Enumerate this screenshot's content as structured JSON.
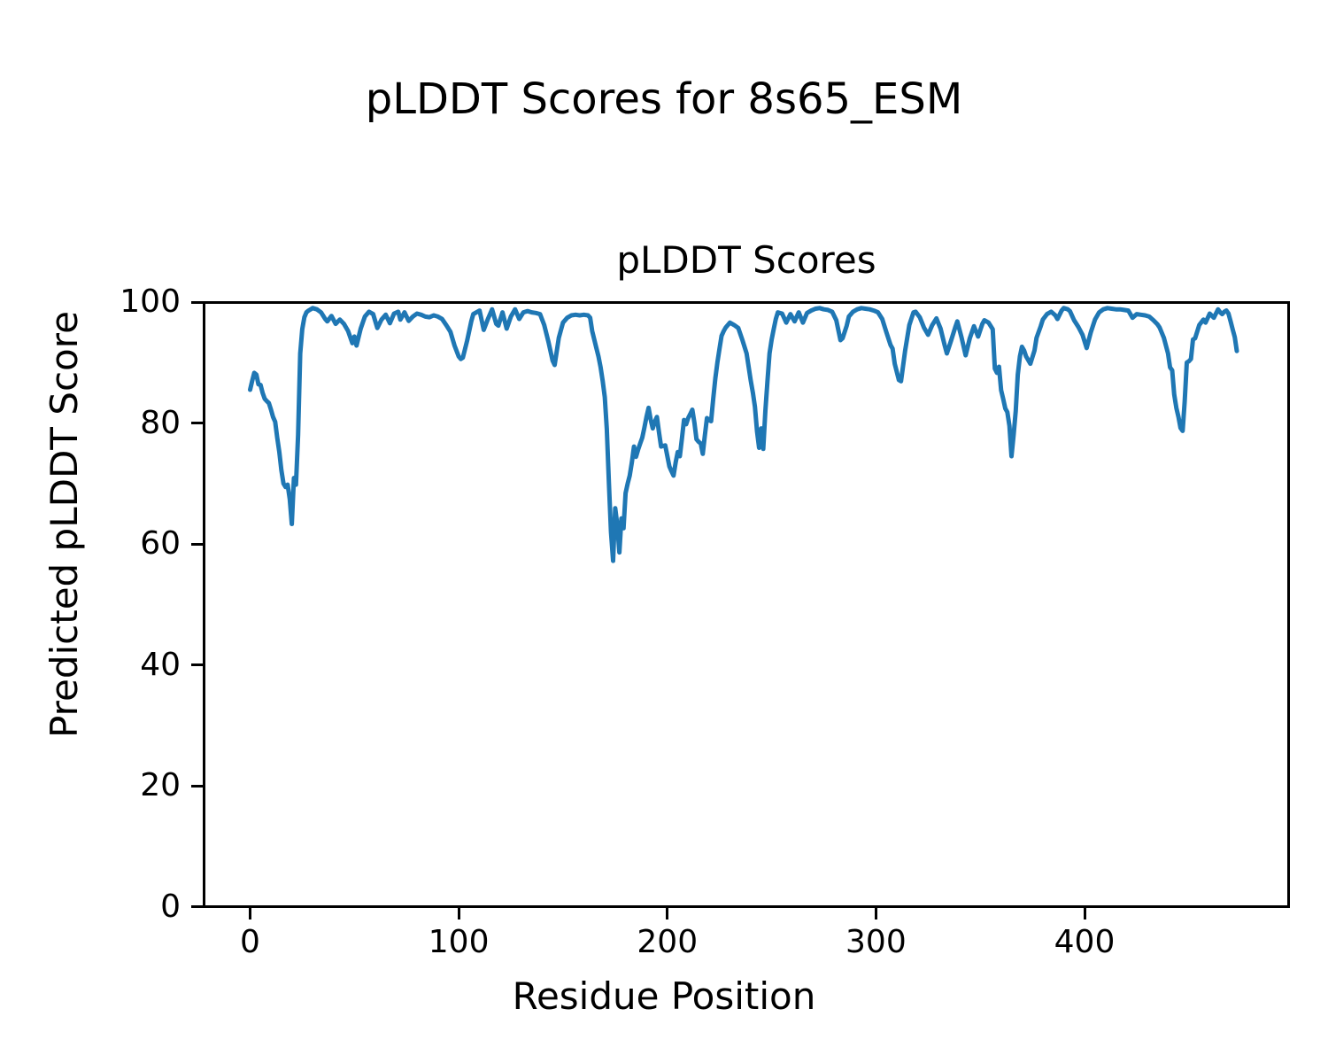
{
  "figure": {
    "suptitle": "pLDDT Scores for 8s65_ESM",
    "background": "#ffffff"
  },
  "chart_data": {
    "type": "line",
    "title": "pLDDT Scores",
    "suptitle": "pLDDT Scores for 8s65_ESM",
    "xlabel": "Residue Position",
    "ylabel": "Predicted pLDDT Score",
    "xlim": [
      -23.6,
      497.5
    ],
    "ylim": [
      0,
      100
    ],
    "xticks": [
      0,
      100,
      200,
      300,
      400
    ],
    "yticks": [
      0,
      20,
      40,
      60,
      80,
      100
    ],
    "grid": false,
    "legend_position": "none",
    "line_color": "#1f77b4",
    "line_width": 5,
    "axis_color": "#000000",
    "series": [
      {
        "name": "pLDDT",
        "points": [
          [
            0,
            85.5
          ],
          [
            1,
            87
          ],
          [
            2,
            88.3
          ],
          [
            3,
            88
          ],
          [
            4,
            86.4
          ],
          [
            5,
            86.3
          ],
          [
            6,
            85
          ],
          [
            7,
            84
          ],
          [
            8,
            83.6
          ],
          [
            9,
            83.3
          ],
          [
            10,
            82.2
          ],
          [
            11,
            81
          ],
          [
            12,
            80.2
          ],
          [
            13,
            77.6
          ],
          [
            14,
            75.2
          ],
          [
            15,
            72.2
          ],
          [
            16,
            70
          ],
          [
            17,
            69.4
          ],
          [
            18,
            69.8
          ],
          [
            19,
            67.4
          ],
          [
            20,
            63.3
          ],
          [
            21,
            70.9
          ],
          [
            22,
            69.8
          ],
          [
            23,
            78
          ],
          [
            24,
            91.5
          ],
          [
            25,
            95.5
          ],
          [
            26,
            97.5
          ],
          [
            27,
            98.3
          ],
          [
            28,
            98.6
          ],
          [
            30,
            99
          ],
          [
            32,
            98.8
          ],
          [
            34,
            98.3
          ],
          [
            36,
            97.2
          ],
          [
            37,
            96.8
          ],
          [
            39,
            97.7
          ],
          [
            41,
            96.4
          ],
          [
            43,
            97.1
          ],
          [
            45,
            96.4
          ],
          [
            47,
            95.2
          ],
          [
            49,
            93.2
          ],
          [
            50,
            94.3
          ],
          [
            51,
            92.8
          ],
          [
            53,
            95.6
          ],
          [
            55,
            97.6
          ],
          [
            57,
            98.4
          ],
          [
            59,
            98
          ],
          [
            61,
            95.7
          ],
          [
            63,
            97.1
          ],
          [
            65,
            97.9
          ],
          [
            67,
            96.5
          ],
          [
            69,
            98.1
          ],
          [
            71,
            98.4
          ],
          [
            72,
            97.1
          ],
          [
            74,
            98.3
          ],
          [
            76,
            96.9
          ],
          [
            78,
            97.6
          ],
          [
            80,
            98.1
          ],
          [
            82,
            97.9
          ],
          [
            84,
            97.6
          ],
          [
            86,
            97.5
          ],
          [
            88,
            97.8
          ],
          [
            90,
            97.6
          ],
          [
            92,
            97.2
          ],
          [
            94,
            96.2
          ],
          [
            96,
            95.1
          ],
          [
            98,
            92.8
          ],
          [
            100,
            91
          ],
          [
            101,
            90.6
          ],
          [
            102,
            90.8
          ],
          [
            104,
            93.6
          ],
          [
            106,
            96.8
          ],
          [
            107,
            98
          ],
          [
            109,
            98.4
          ],
          [
            110,
            98.6
          ],
          [
            112,
            95.4
          ],
          [
            114,
            97.2
          ],
          [
            116,
            98.8
          ],
          [
            118,
            96.4
          ],
          [
            119,
            96.1
          ],
          [
            121,
            98.3
          ],
          [
            123,
            95.6
          ],
          [
            125,
            97.6
          ],
          [
            127,
            98.8
          ],
          [
            129,
            97.2
          ],
          [
            131,
            98.3
          ],
          [
            133,
            98.5
          ],
          [
            135,
            98.3
          ],
          [
            137,
            98.2
          ],
          [
            139,
            98
          ],
          [
            141,
            96.2
          ],
          [
            143,
            93.4
          ],
          [
            145,
            90.3
          ],
          [
            146,
            89.6
          ],
          [
            148,
            94.1
          ],
          [
            150,
            96.6
          ],
          [
            152,
            97.4
          ],
          [
            154,
            97.8
          ],
          [
            156,
            97.9
          ],
          [
            158,
            97.8
          ],
          [
            160,
            97.9
          ],
          [
            162,
            97.8
          ],
          [
            163,
            97.4
          ],
          [
            164,
            95.2
          ],
          [
            166,
            92.4
          ],
          [
            167,
            91
          ],
          [
            168,
            89.2
          ],
          [
            169,
            87
          ],
          [
            170,
            84.3
          ],
          [
            171,
            79
          ],
          [
            172,
            70
          ],
          [
            173,
            62
          ],
          [
            174,
            57.2
          ],
          [
            175,
            65.9
          ],
          [
            176,
            63.2
          ],
          [
            177,
            58.6
          ],
          [
            178,
            64.2
          ],
          [
            179,
            62.6
          ],
          [
            180,
            68.4
          ],
          [
            181,
            70
          ],
          [
            182,
            71.3
          ],
          [
            183,
            73.5
          ],
          [
            184,
            76.1
          ],
          [
            185,
            74.4
          ],
          [
            186,
            75.6
          ],
          [
            187,
            76.6
          ],
          [
            188,
            77.6
          ],
          [
            189,
            79.2
          ],
          [
            190,
            81
          ],
          [
            191,
            82.5
          ],
          [
            192,
            80.6
          ],
          [
            193,
            79.1
          ],
          [
            194,
            80.2
          ],
          [
            195,
            81
          ],
          [
            196,
            78.5
          ],
          [
            197,
            76.1
          ],
          [
            198,
            76.2
          ],
          [
            199,
            76.3
          ],
          [
            200,
            74.5
          ],
          [
            201,
            72.8
          ],
          [
            202,
            72
          ],
          [
            203,
            71.3
          ],
          [
            204,
            73.5
          ],
          [
            205,
            75.2
          ],
          [
            206,
            74.5
          ],
          [
            207,
            77.5
          ],
          [
            208,
            80.5
          ],
          [
            209,
            79.8
          ],
          [
            210,
            80.8
          ],
          [
            211,
            81.5
          ],
          [
            212,
            82.2
          ],
          [
            213,
            80
          ],
          [
            214,
            77.3
          ],
          [
            215,
            76.9
          ],
          [
            216,
            76.6
          ],
          [
            217,
            74.9
          ],
          [
            218,
            78
          ],
          [
            219,
            80.8
          ],
          [
            220,
            80.5
          ],
          [
            221,
            80.3
          ],
          [
            222,
            84
          ],
          [
            223,
            87.4
          ],
          [
            224,
            90
          ],
          [
            225,
            92.3
          ],
          [
            226,
            94.4
          ],
          [
            227,
            95.2
          ],
          [
            228,
            95.8
          ],
          [
            230,
            96.6
          ],
          [
            232,
            96.2
          ],
          [
            234,
            95.7
          ],
          [
            236,
            93.7
          ],
          [
            238,
            91.5
          ],
          [
            240,
            87
          ],
          [
            241,
            85
          ],
          [
            242,
            82.7
          ],
          [
            243,
            78.6
          ],
          [
            244,
            75.9
          ],
          [
            245,
            79.1
          ],
          [
            246,
            75.7
          ],
          [
            247,
            82
          ],
          [
            248,
            87
          ],
          [
            249,
            91.5
          ],
          [
            250,
            93.8
          ],
          [
            251,
            95.5
          ],
          [
            252,
            97.2
          ],
          [
            253,
            98.3
          ],
          [
            255,
            98.1
          ],
          [
            257,
            96.6
          ],
          [
            259,
            98
          ],
          [
            261,
            96.8
          ],
          [
            263,
            98.3
          ],
          [
            265,
            96.6
          ],
          [
            267,
            98.2
          ],
          [
            269,
            98.6
          ],
          [
            271,
            98.9
          ],
          [
            273,
            99
          ],
          [
            275,
            98.8
          ],
          [
            277,
            98.7
          ],
          [
            279,
            98.4
          ],
          [
            281,
            97
          ],
          [
            283,
            93.7
          ],
          [
            284,
            94
          ],
          [
            286,
            96.1
          ],
          [
            287,
            97.6
          ],
          [
            289,
            98.4
          ],
          [
            291,
            98.8
          ],
          [
            293,
            99
          ],
          [
            295,
            98.9
          ],
          [
            297,
            98.8
          ],
          [
            299,
            98.6
          ],
          [
            301,
            98.3
          ],
          [
            303,
            97.2
          ],
          [
            305,
            95
          ],
          [
            307,
            92.9
          ],
          [
            308,
            92.3
          ],
          [
            309,
            89.8
          ],
          [
            311,
            87.1
          ],
          [
            312,
            86.9
          ],
          [
            314,
            92
          ],
          [
            316,
            96.2
          ],
          [
            318,
            98.3
          ],
          [
            319,
            98.4
          ],
          [
            321,
            97.5
          ],
          [
            323,
            95.8
          ],
          [
            325,
            94.6
          ],
          [
            327,
            96.2
          ],
          [
            329,
            97.3
          ],
          [
            331,
            95.6
          ],
          [
            333,
            92.8
          ],
          [
            334,
            91.5
          ],
          [
            336,
            93.6
          ],
          [
            338,
            95.8
          ],
          [
            339,
            96.8
          ],
          [
            341,
            94.2
          ],
          [
            343,
            91.2
          ],
          [
            345,
            94
          ],
          [
            347,
            96
          ],
          [
            349,
            94.3
          ],
          [
            351,
            96.4
          ],
          [
            352,
            97
          ],
          [
            354,
            96.6
          ],
          [
            356,
            95.5
          ],
          [
            357,
            89
          ],
          [
            358,
            88.3
          ],
          [
            359,
            89.3
          ],
          [
            360,
            85.4
          ],
          [
            361,
            84
          ],
          [
            362,
            82.4
          ],
          [
            363,
            81.8
          ],
          [
            364,
            79.5
          ],
          [
            365,
            74.5
          ],
          [
            366,
            78
          ],
          [
            367,
            82
          ],
          [
            368,
            88
          ],
          [
            369,
            91
          ],
          [
            370,
            92.6
          ],
          [
            371,
            92
          ],
          [
            372,
            91
          ],
          [
            374,
            89.8
          ],
          [
            376,
            92
          ],
          [
            377,
            94.1
          ],
          [
            379,
            96
          ],
          [
            380,
            97.1
          ],
          [
            382,
            98
          ],
          [
            384,
            98.4
          ],
          [
            386,
            97.8
          ],
          [
            387,
            97.2
          ],
          [
            389,
            98.6
          ],
          [
            390,
            99
          ],
          [
            392,
            98.8
          ],
          [
            393,
            98.5
          ],
          [
            395,
            97
          ],
          [
            397,
            95.9
          ],
          [
            399,
            94.6
          ],
          [
            401,
            92.4
          ],
          [
            403,
            95
          ],
          [
            405,
            97.1
          ],
          [
            407,
            98.3
          ],
          [
            409,
            98.8
          ],
          [
            411,
            99
          ],
          [
            413,
            98.9
          ],
          [
            415,
            98.8
          ],
          [
            417,
            98.8
          ],
          [
            419,
            98.7
          ],
          [
            421,
            98.6
          ],
          [
            423,
            97.4
          ],
          [
            425,
            98
          ],
          [
            427,
            97.9
          ],
          [
            429,
            97.8
          ],
          [
            431,
            97.6
          ],
          [
            433,
            97
          ],
          [
            435,
            96.3
          ],
          [
            436,
            95.8
          ],
          [
            438,
            94.1
          ],
          [
            440,
            91.5
          ],
          [
            441,
            89.2
          ],
          [
            442,
            88.7
          ],
          [
            443,
            84.7
          ],
          [
            444,
            82.5
          ],
          [
            445,
            81
          ],
          [
            446,
            79.2
          ],
          [
            447,
            78.7
          ],
          [
            448,
            83.5
          ],
          [
            449,
            90
          ],
          [
            450,
            90.2
          ],
          [
            451,
            90.6
          ],
          [
            452,
            93.8
          ],
          [
            453,
            94
          ],
          [
            455,
            96.2
          ],
          [
            457,
            97.1
          ],
          [
            458,
            96.6
          ],
          [
            460,
            98.1
          ],
          [
            462,
            97.4
          ],
          [
            464,
            98.8
          ],
          [
            465,
            98.3
          ],
          [
            466,
            98
          ],
          [
            467,
            98.4
          ],
          [
            468,
            98.6
          ],
          [
            469,
            98.1
          ],
          [
            470,
            96.8
          ],
          [
            471,
            95.5
          ],
          [
            472,
            94.2
          ],
          [
            473,
            91.9
          ]
        ]
      }
    ]
  }
}
